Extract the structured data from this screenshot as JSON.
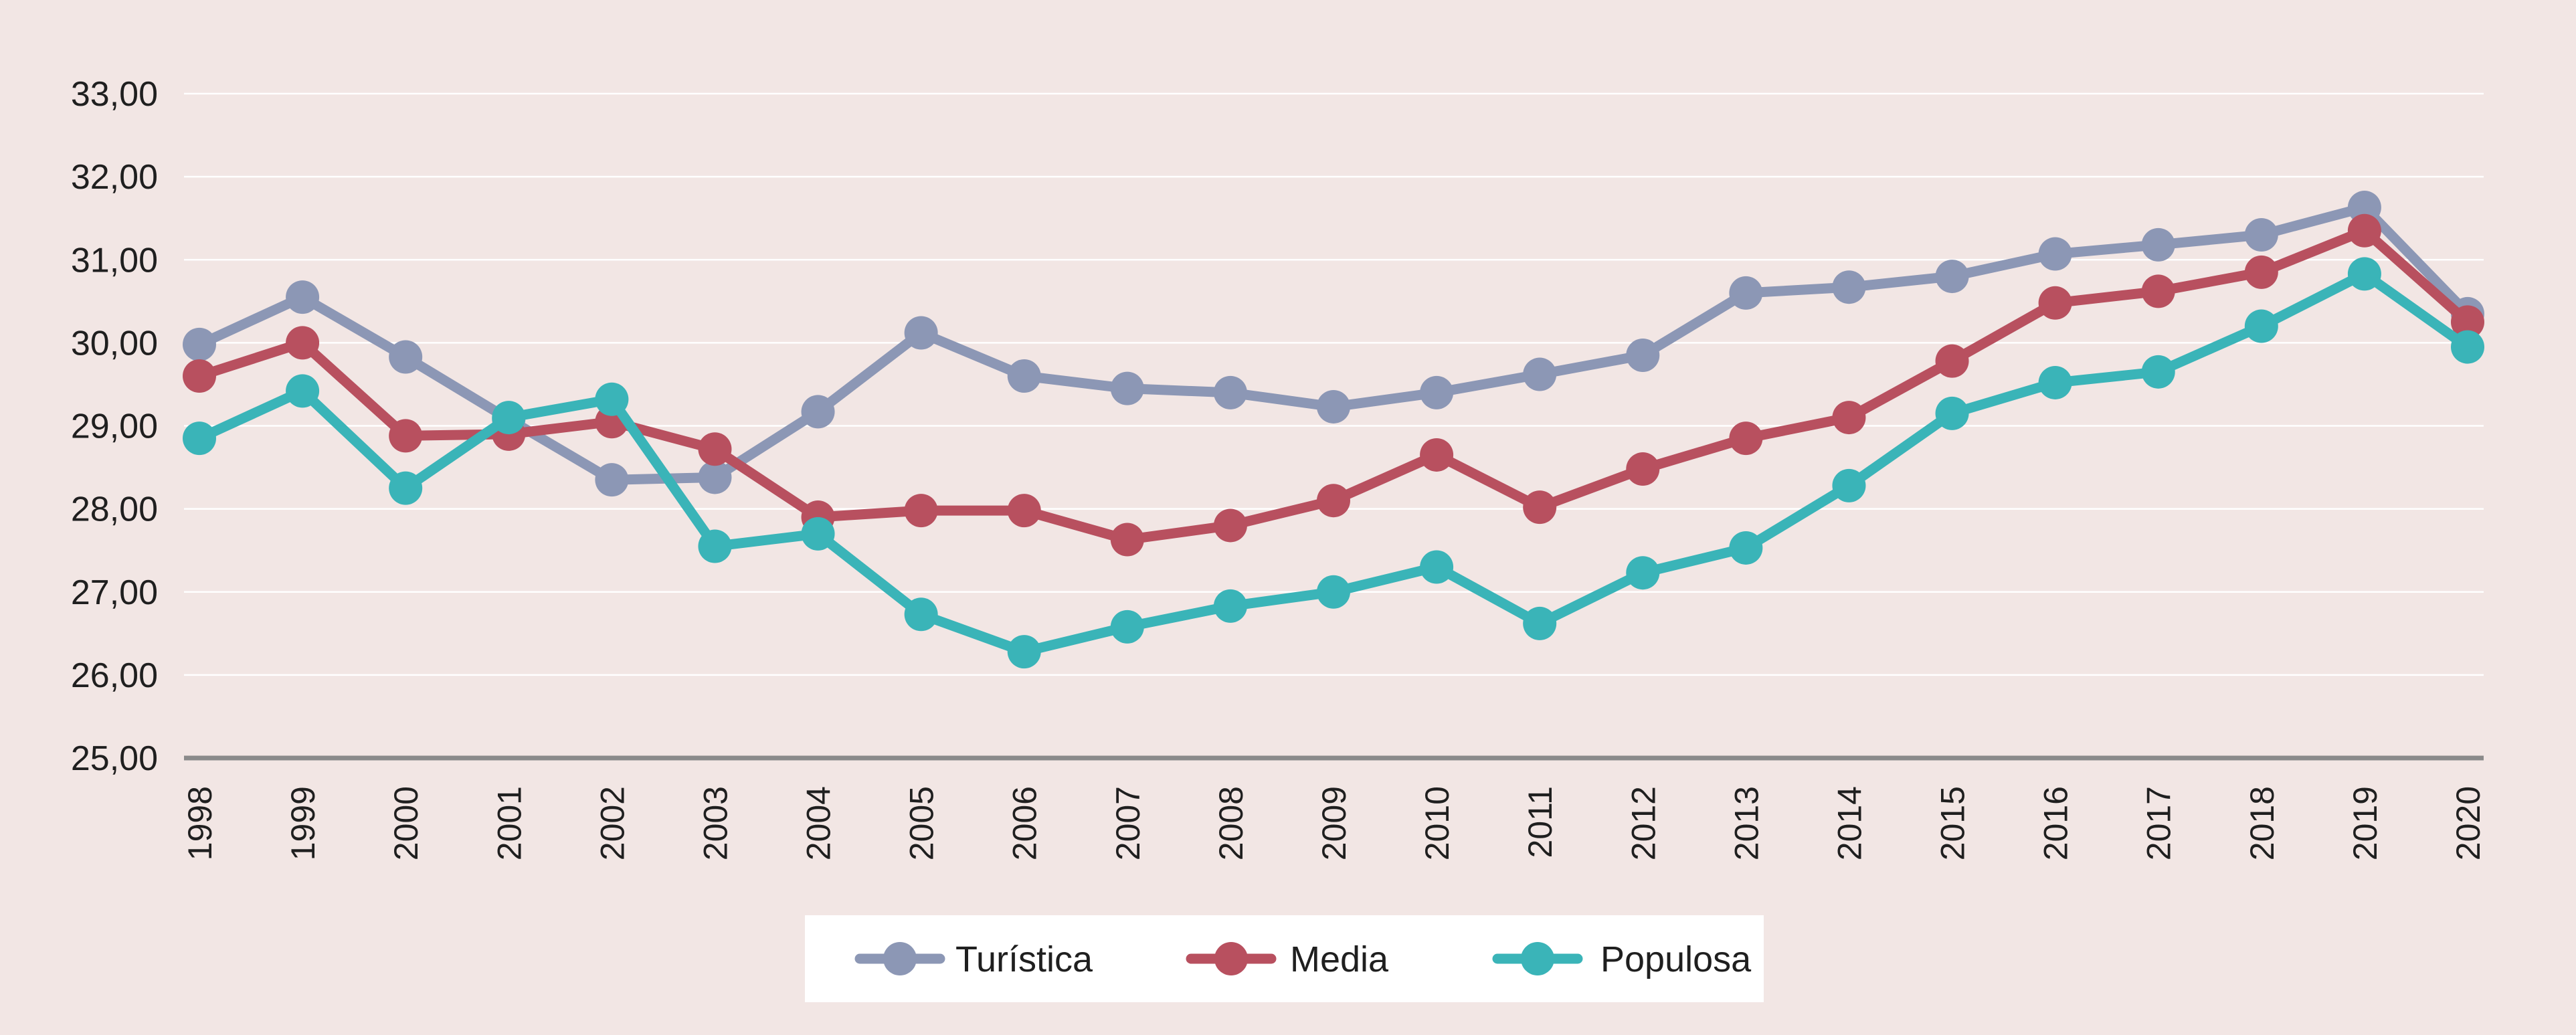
{
  "chart_data": {
    "type": "line",
    "title": "",
    "xlabel": "",
    "ylabel": "",
    "ylim": [
      25,
      33
    ],
    "yticks": [
      25,
      26,
      27,
      28,
      29,
      30,
      31,
      32,
      33
    ],
    "ytick_labels": [
      "25,00",
      "26,00",
      "27,00",
      "28,00",
      "29,00",
      "30,00",
      "31,00",
      "32,00",
      "33,00"
    ],
    "categories": [
      "1998",
      "1999",
      "2000",
      "2001",
      "2002",
      "2003",
      "2004",
      "2005",
      "2006",
      "2007",
      "2008",
      "2009",
      "2010",
      "2011",
      "2012",
      "2013",
      "2014",
      "2015",
      "2016",
      "2017",
      "2018",
      "2019",
      "2020"
    ],
    "grid": true,
    "legend_position": "bottom-center",
    "series": [
      {
        "name": "Turística",
        "color": "#8c97b5",
        "values": [
          29.98,
          30.55,
          29.83,
          29.08,
          28.35,
          28.38,
          29.17,
          30.12,
          29.6,
          29.45,
          29.4,
          29.23,
          29.4,
          29.62,
          29.85,
          30.6,
          30.67,
          30.8,
          31.07,
          31.18,
          31.3,
          31.63,
          30.35
        ]
      },
      {
        "name": "Media",
        "color": "#b8505f",
        "values": [
          29.6,
          30.0,
          28.88,
          28.9,
          29.05,
          28.72,
          27.9,
          27.98,
          27.98,
          27.63,
          27.8,
          28.1,
          28.65,
          28.02,
          28.48,
          28.85,
          29.1,
          29.78,
          30.48,
          30.62,
          30.85,
          31.35,
          30.25
        ]
      },
      {
        "name": "Populosa",
        "color": "#3ab4b8",
        "values": [
          28.85,
          29.42,
          28.25,
          29.1,
          29.32,
          27.55,
          27.7,
          26.73,
          26.28,
          26.58,
          26.83,
          27.0,
          27.3,
          26.62,
          27.23,
          27.53,
          28.28,
          29.15,
          29.52,
          29.65,
          30.2,
          30.83,
          29.95
        ]
      }
    ]
  }
}
